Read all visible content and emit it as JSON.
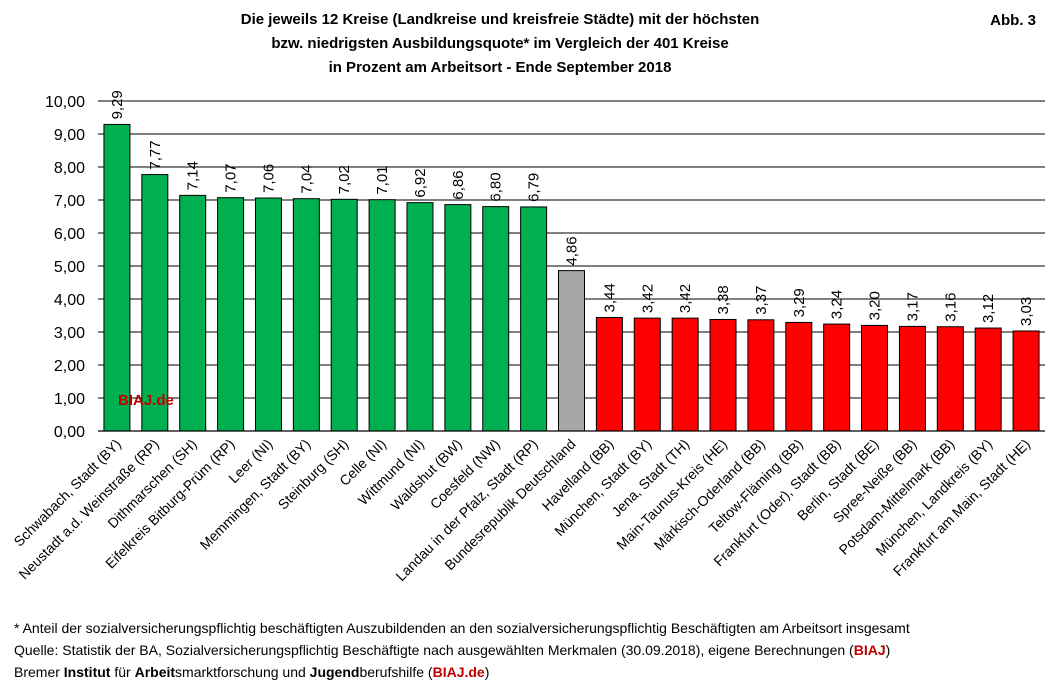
{
  "figure_label": "Abb. 3",
  "title_lines": [
    "Die jeweils 12 Kreise (Landkreise und kreisfreie Städte)  mit der höchsten",
    "bzw. niedrigsten Ausbildungsquote* im Vergleich der 401 Kreise",
    "in Prozent am Arbeitsort - Ende September 2018"
  ],
  "watermark": "BIAJ.de",
  "colors": {
    "high": "#00b050",
    "national": "#a6a6a6",
    "low": "#ff0000",
    "brand_red": "#c00000"
  },
  "chart_data": {
    "type": "bar",
    "title": "Die jeweils 12 Kreise (Landkreise und kreisfreie Städte)  mit der höchsten bzw. niedrigsten Ausbildungsquote* im Vergleich der 401 Kreise in Prozent am Arbeitsort - Ende September 2018",
    "xlabel": "",
    "ylabel": "",
    "ylim": [
      0,
      10
    ],
    "yticks": [
      "0,00",
      "1,00",
      "2,00",
      "3,00",
      "4,00",
      "5,00",
      "6,00",
      "7,00",
      "8,00",
      "9,00",
      "10,00"
    ],
    "grid": true,
    "legend": "none",
    "categories": [
      "Schwabach, Stadt (BY)",
      "Neustadt a.d. Weinstraße (RP)",
      "Dithmarschen (SH)",
      "Eifelkreis Bitburg-Prüm (RP)",
      "Leer (NI)",
      "Memmingen, Stadt (BY)",
      "Steinburg (SH)",
      "Celle (NI)",
      "Wittmund (NI)",
      "Waldshut (BW)",
      "Coesfeld (NW)",
      "Landau in der Pfalz, Stadt (RP)",
      "Bundesrepublik Deutschland",
      "Havelland (BB)",
      "München, Stadt (BY)",
      "Jena, Stadt (TH)",
      "Main-Taunus-Kreis (HE)",
      "Märkisch-Oderland (BB)",
      "Teltow-Fläming (BB)",
      "Frankfurt (Oder), Stadt (BB)",
      "Berlin, Stadt (BE)",
      "Spree-Neiße (BB)",
      "Potsdam-Mittelmark (BB)",
      "München, Landkreis (BY)",
      "Frankfurt am Main, Stadt (HE)"
    ],
    "values": [
      9.29,
      7.77,
      7.14,
      7.07,
      7.06,
      7.04,
      7.02,
      7.01,
      6.92,
      6.86,
      6.8,
      6.79,
      4.86,
      3.44,
      3.42,
      3.42,
      3.38,
      3.37,
      3.29,
      3.24,
      3.2,
      3.17,
      3.16,
      3.12,
      3.03
    ],
    "value_labels": [
      "9,29",
      "7,77",
      "7,14",
      "7,07",
      "7,06",
      "7,04",
      "7,02",
      "7,01",
      "6,92",
      "6,86",
      "6,80",
      "6,79",
      "4,86",
      "3,44",
      "3,42",
      "3,42",
      "3,38",
      "3,37",
      "3,29",
      "3,24",
      "3,20",
      "3,17",
      "3,16",
      "3,12",
      "3,03"
    ],
    "groups": [
      "high",
      "high",
      "high",
      "high",
      "high",
      "high",
      "high",
      "high",
      "high",
      "high",
      "high",
      "high",
      "national",
      "low",
      "low",
      "low",
      "low",
      "low",
      "low",
      "low",
      "low",
      "low",
      "low",
      "low",
      "low"
    ]
  },
  "footer": {
    "note": "* Anteil der sozialversicherungspflichtig beschäftigten Auszubildenden an den sozialversicherungspflichtig Beschäftigten am Arbeitsort insgesamt",
    "source_prefix": "Quelle: Statistik der BA, Sozialversicherungspflichtig Beschäftigte nach ausgewählten Merkmalen (30.09.2018), eigene Berechnungen (",
    "source_brand": "BIAJ",
    "source_suffix": ")",
    "org": [
      "Bremer ",
      "Institut",
      " für ",
      "Arbeit",
      "smarktforschung und ",
      "Jugend",
      "berufshilfe ("
    ],
    "org_brand": "BIAJ.de",
    "org_suffix": ")"
  }
}
